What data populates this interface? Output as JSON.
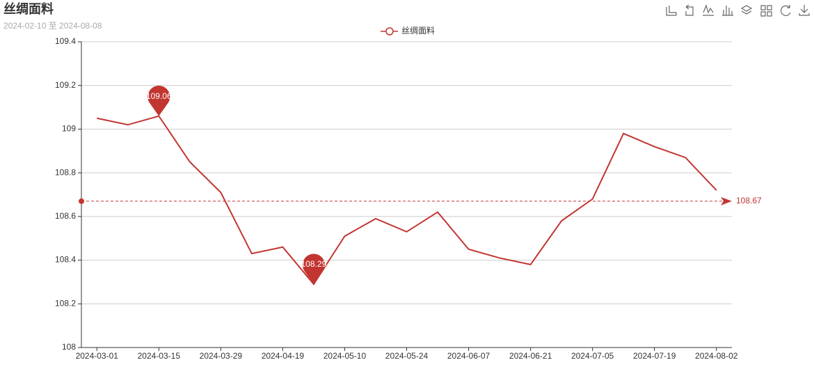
{
  "chart_data": {
    "type": "line",
    "title": "丝绸面料",
    "subtitle": "2024-02-10 至 2024-08-08",
    "categories": [
      "2024-03-01",
      null,
      "2024-03-15",
      null,
      "2024-03-29",
      null,
      "2024-04-19",
      null,
      "2024-05-10",
      null,
      "2024-05-24",
      null,
      "2024-06-07",
      null,
      "2024-06-21",
      null,
      "2024-07-05",
      null,
      "2024-07-19",
      null,
      "2024-08-02"
    ],
    "series": [
      {
        "name": "丝绸面料",
        "color": "#c23531",
        "values": [
          109.05,
          109.02,
          109.06,
          108.85,
          108.71,
          108.43,
          108.46,
          108.29,
          108.51,
          108.59,
          108.53,
          108.62,
          108.45,
          108.41,
          108.38,
          108.58,
          108.68,
          108.98,
          108.92,
          108.87,
          108.72
        ]
      }
    ],
    "mark_points": [
      {
        "index": 2,
        "value": 109.06
      },
      {
        "index": 7,
        "value": 108.29
      }
    ],
    "average": 108.67,
    "ylim": [
      108,
      109.4
    ],
    "yticks": [
      108,
      108.2,
      108.4,
      108.6,
      108.8,
      109,
      109.2,
      109.4
    ],
    "grid": true
  }
}
